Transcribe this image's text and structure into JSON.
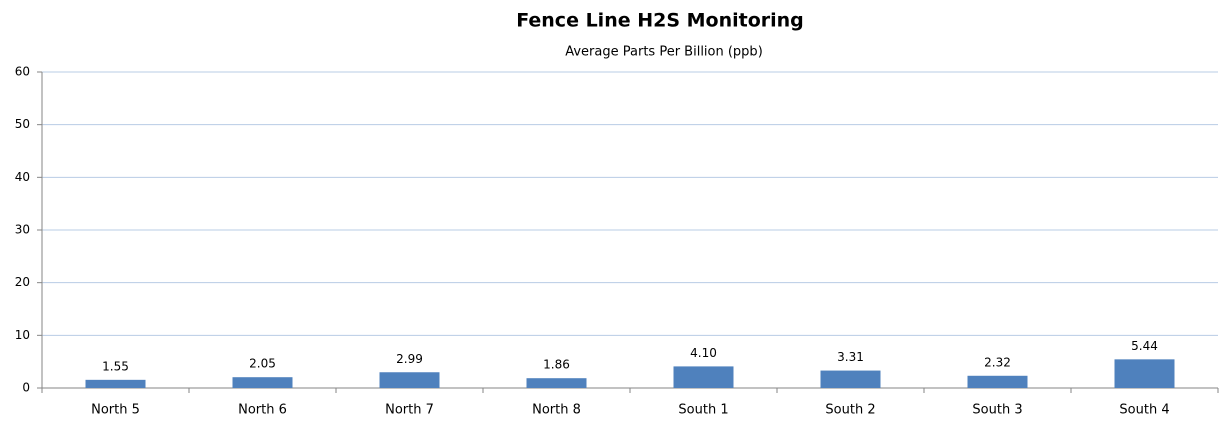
{
  "chart_data": {
    "type": "bar",
    "title": "Fence Line H2S Monitoring",
    "subtitle": "Average Parts Per Billion  (ppb)",
    "categories": [
      "North 5",
      "North 6",
      "North 7",
      "North 8",
      "South 1",
      "South 2",
      "South 3",
      "South 4"
    ],
    "values": [
      1.55,
      2.05,
      2.99,
      1.86,
      4.1,
      3.31,
      2.32,
      5.44
    ],
    "value_labels": [
      "1.55",
      "2.05",
      "2.99",
      "1.86",
      "4.10",
      "3.31",
      "2.32",
      "5.44"
    ],
    "color": "#4f81bd",
    "ylim": [
      0,
      60
    ],
    "yticks": [
      0,
      10,
      20,
      30,
      40,
      50,
      60
    ],
    "grid": true
  }
}
